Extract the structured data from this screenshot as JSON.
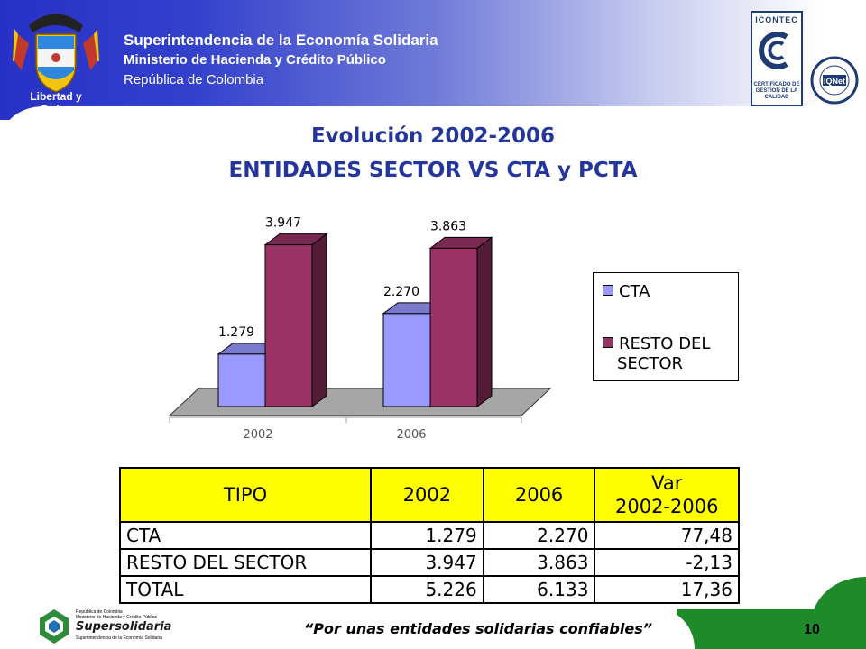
{
  "header": {
    "org_name": "Superintendencia de la Economía Solidaria",
    "ministry": "Ministerio de Hacienda y Crédito Público",
    "country": "República de Colombia",
    "motto": "Libertad y Orden",
    "cert_icontec_top": "ICONTEC",
    "cert_icontec_text": "CERTIFICADO DE GESTIÓN DE LA CALIDAD",
    "cert_iqnet": "IQNet"
  },
  "titles": {
    "line1": "Evolución 2002-2006",
    "line2": "ENTIDADES SECTOR VS CTA y PCTA"
  },
  "chart_data": {
    "type": "bar",
    "categories": [
      "2002",
      "2006"
    ],
    "series": [
      {
        "name": "CTA",
        "values": [
          1279,
          2270
        ],
        "labels": [
          "1.279",
          "2.270"
        ],
        "color": "#9999ff"
      },
      {
        "name": "RESTO DEL SECTOR",
        "values": [
          3947,
          3863
        ],
        "labels": [
          "3.947",
          "3.863"
        ],
        "color": "#993366"
      }
    ],
    "ylim": [
      0,
      4400
    ],
    "grid": false,
    "legend_position": "right",
    "legend_labels": {
      "cta": "CTA",
      "resto_line1": "RESTO DEL",
      "resto_line2": "SECTOR"
    }
  },
  "table": {
    "headers": {
      "tipo": "TIPO",
      "y2002": "2002",
      "y2006": "2006",
      "var_line1": "Var",
      "var_line2": "2002-2006"
    },
    "rows": [
      {
        "tipo": "CTA",
        "y2002": "1.279",
        "y2006": "2.270",
        "var": "77,48"
      },
      {
        "tipo": "RESTO DEL SECTOR",
        "y2002": "3.947",
        "y2006": "3.863",
        "var": "-2,13"
      },
      {
        "tipo": "TOTAL",
        "y2002": "5.226",
        "y2006": "6.133",
        "var": "17,36"
      }
    ]
  },
  "footer": {
    "slogan": "“Por unas entidades solidarias confiables”",
    "page_number": "10",
    "logo_top": "República de Colombia",
    "logo_ministry": "Ministerio de Hacienda y Crédito Público",
    "logo_name": "Supersolidaria",
    "logo_sub": "Superintendencia de la Economía Solidaria"
  },
  "colors": {
    "header_blue": "#2731c6",
    "title_blue": "#24369c",
    "table_header": "#ffff00",
    "footer_green": "#1f8a2a"
  }
}
